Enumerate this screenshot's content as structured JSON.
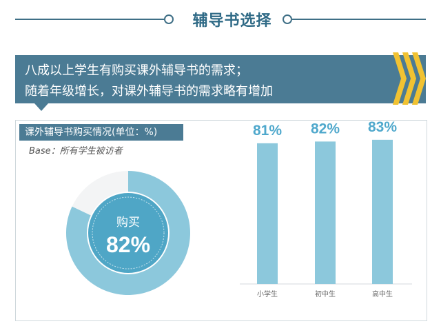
{
  "header": {
    "title": "辅导书选择"
  },
  "banner": {
    "line1": "八成以上学生有购买课外辅导书的需求；",
    "line2": "随着年级增长，对课外辅导书的需求略有增加"
  },
  "colors": {
    "accent": "#4b7b94",
    "bar": "#8cc8dc",
    "donut_outer": "#8cc8dc",
    "donut_inner": "#4fa6c6",
    "chevron": "#f1c232",
    "value_text": "#4fa8cc"
  },
  "chart_data": [
    {
      "type": "pie",
      "title": "课外辅导书购买情况(单位：%)",
      "subtitle": "Base：所有学生被访者",
      "center_label": "购买",
      "center_value_text": "82%",
      "slices": [
        {
          "label": "购买",
          "value": 82
        },
        {
          "label": "",
          "value": 18
        }
      ]
    },
    {
      "type": "bar",
      "categories": [
        "小学生",
        "初中生",
        "高中生"
      ],
      "values": [
        81,
        82,
        83
      ],
      "value_labels": [
        "81%",
        "82%",
        "83%"
      ],
      "ylim": [
        0,
        100
      ],
      "xlabel": "",
      "ylabel": ""
    }
  ]
}
